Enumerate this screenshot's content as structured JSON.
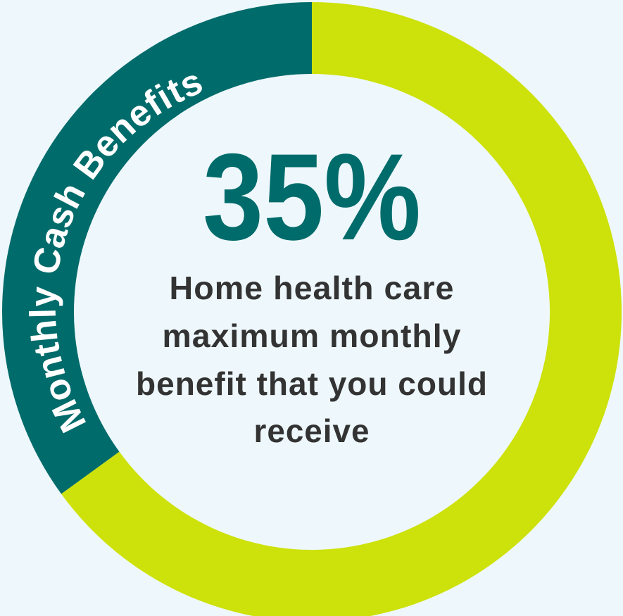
{
  "chart_data": {
    "type": "pie",
    "style": "donut",
    "label": "Monthly Cash Benefits",
    "value_text": "35%",
    "caption_lines": [
      "Home health care",
      "maximum monthly",
      "benefit that you could",
      "receive"
    ],
    "slices": [
      {
        "value": 35,
        "color": "#006b6b"
      },
      {
        "value": 65,
        "color": "#cde10a"
      }
    ]
  },
  "colors": {
    "background": "#eef8fc",
    "accent": "#006b6b",
    "ring": "#cde10a",
    "caption_text": "#333333",
    "arc_text": "#ffffff"
  }
}
